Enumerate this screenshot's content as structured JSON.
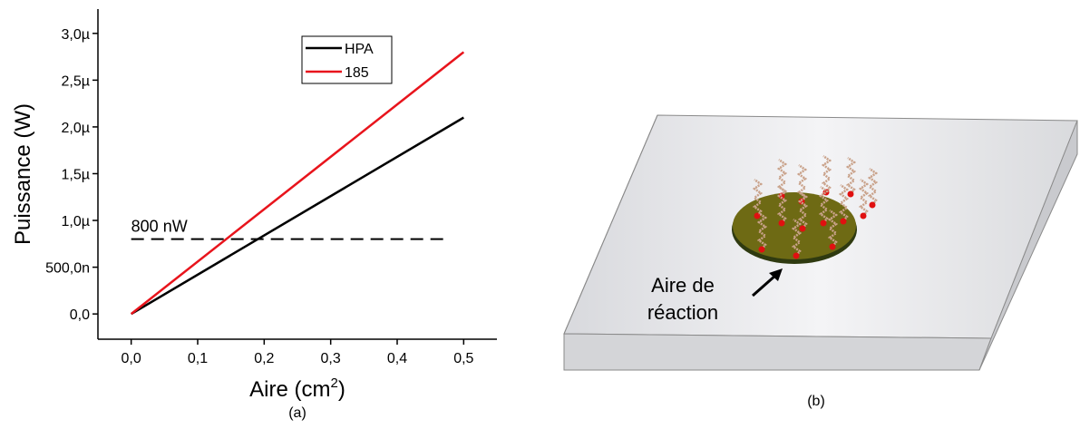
{
  "chart_data": {
    "type": "line",
    "x_label": [
      "Aire (cm",
      "2",
      ")"
    ],
    "y_label": "Puissance (W)",
    "caption": "(a)",
    "x": [
      0,
      0.5
    ],
    "series": [
      {
        "name": "HPA",
        "color": "#000000",
        "values": [
          0,
          2.1e-06
        ]
      },
      {
        "name": "185",
        "color": "#e8141c",
        "values": [
          0,
          2.8e-06
        ]
      }
    ],
    "reference": {
      "label": "800 nW",
      "y": 8e-07,
      "x": [
        0,
        0.48
      ]
    },
    "xlim": [
      -0.05,
      0.55
    ],
    "xticks": [
      {
        "value": 0,
        "label": "0,0"
      },
      {
        "value": 0.1,
        "label": "0,1"
      },
      {
        "value": 0.2,
        "label": "0,2"
      },
      {
        "value": 0.3,
        "label": "0,3"
      },
      {
        "value": 0.4,
        "label": "0,4"
      },
      {
        "value": 0.5,
        "label": "0,5"
      }
    ],
    "ylim": [
      -2.7e-07,
      3.26e-06
    ],
    "yticks": [
      {
        "value": 0,
        "label": "0,0"
      },
      {
        "value": 5e-07,
        "label": "500,0n"
      },
      {
        "value": 1e-06,
        "label": "1,0µ"
      },
      {
        "value": 1.5e-06,
        "label": "1,5µ"
      },
      {
        "value": 2e-06,
        "label": "2,0µ"
      },
      {
        "value": 2.5e-06,
        "label": "2,5µ"
      },
      {
        "value": 3e-06,
        "label": "3,0µ"
      }
    ],
    "legend": "top-right"
  },
  "illustration": {
    "label": [
      "Aire de",
      "réaction"
    ],
    "caption": "(b)"
  }
}
